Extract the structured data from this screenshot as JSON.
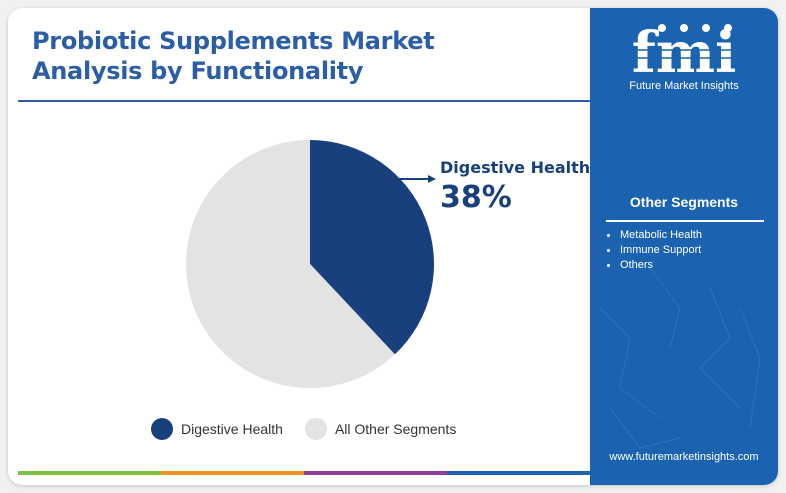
{
  "header": {
    "title_line1": "Probiotic Supplements Market",
    "title_line2": "Analysis by Functionality"
  },
  "colors": {
    "primary": "#17407d",
    "secondary": "#e3e3e3",
    "accent": "#2c5ea8",
    "sidebar": "#1b63b0",
    "footer": [
      "#7dc142",
      "#f39325",
      "#8e3f97",
      "#1b63b0"
    ]
  },
  "chart_data": {
    "type": "pie",
    "categories": [
      "Digestive Health",
      "All Other Segments"
    ],
    "values": [
      38,
      62
    ],
    "callout": {
      "label": "Digestive Health",
      "value": "38%"
    },
    "legend": "bottom"
  },
  "legend": {
    "items": [
      {
        "label": "Digestive Health"
      },
      {
        "label": "All Other Segments"
      }
    ]
  },
  "sidebar": {
    "logo_text": "fmi",
    "logo_icon": "fmi-logo-icon",
    "tagline": "Future Market Insights",
    "other_segments_title": "Other Segments",
    "other_segments": [
      "Metabolic Health",
      "Immune Support",
      "Others"
    ],
    "website": "www.futuremarketinsights.com"
  }
}
